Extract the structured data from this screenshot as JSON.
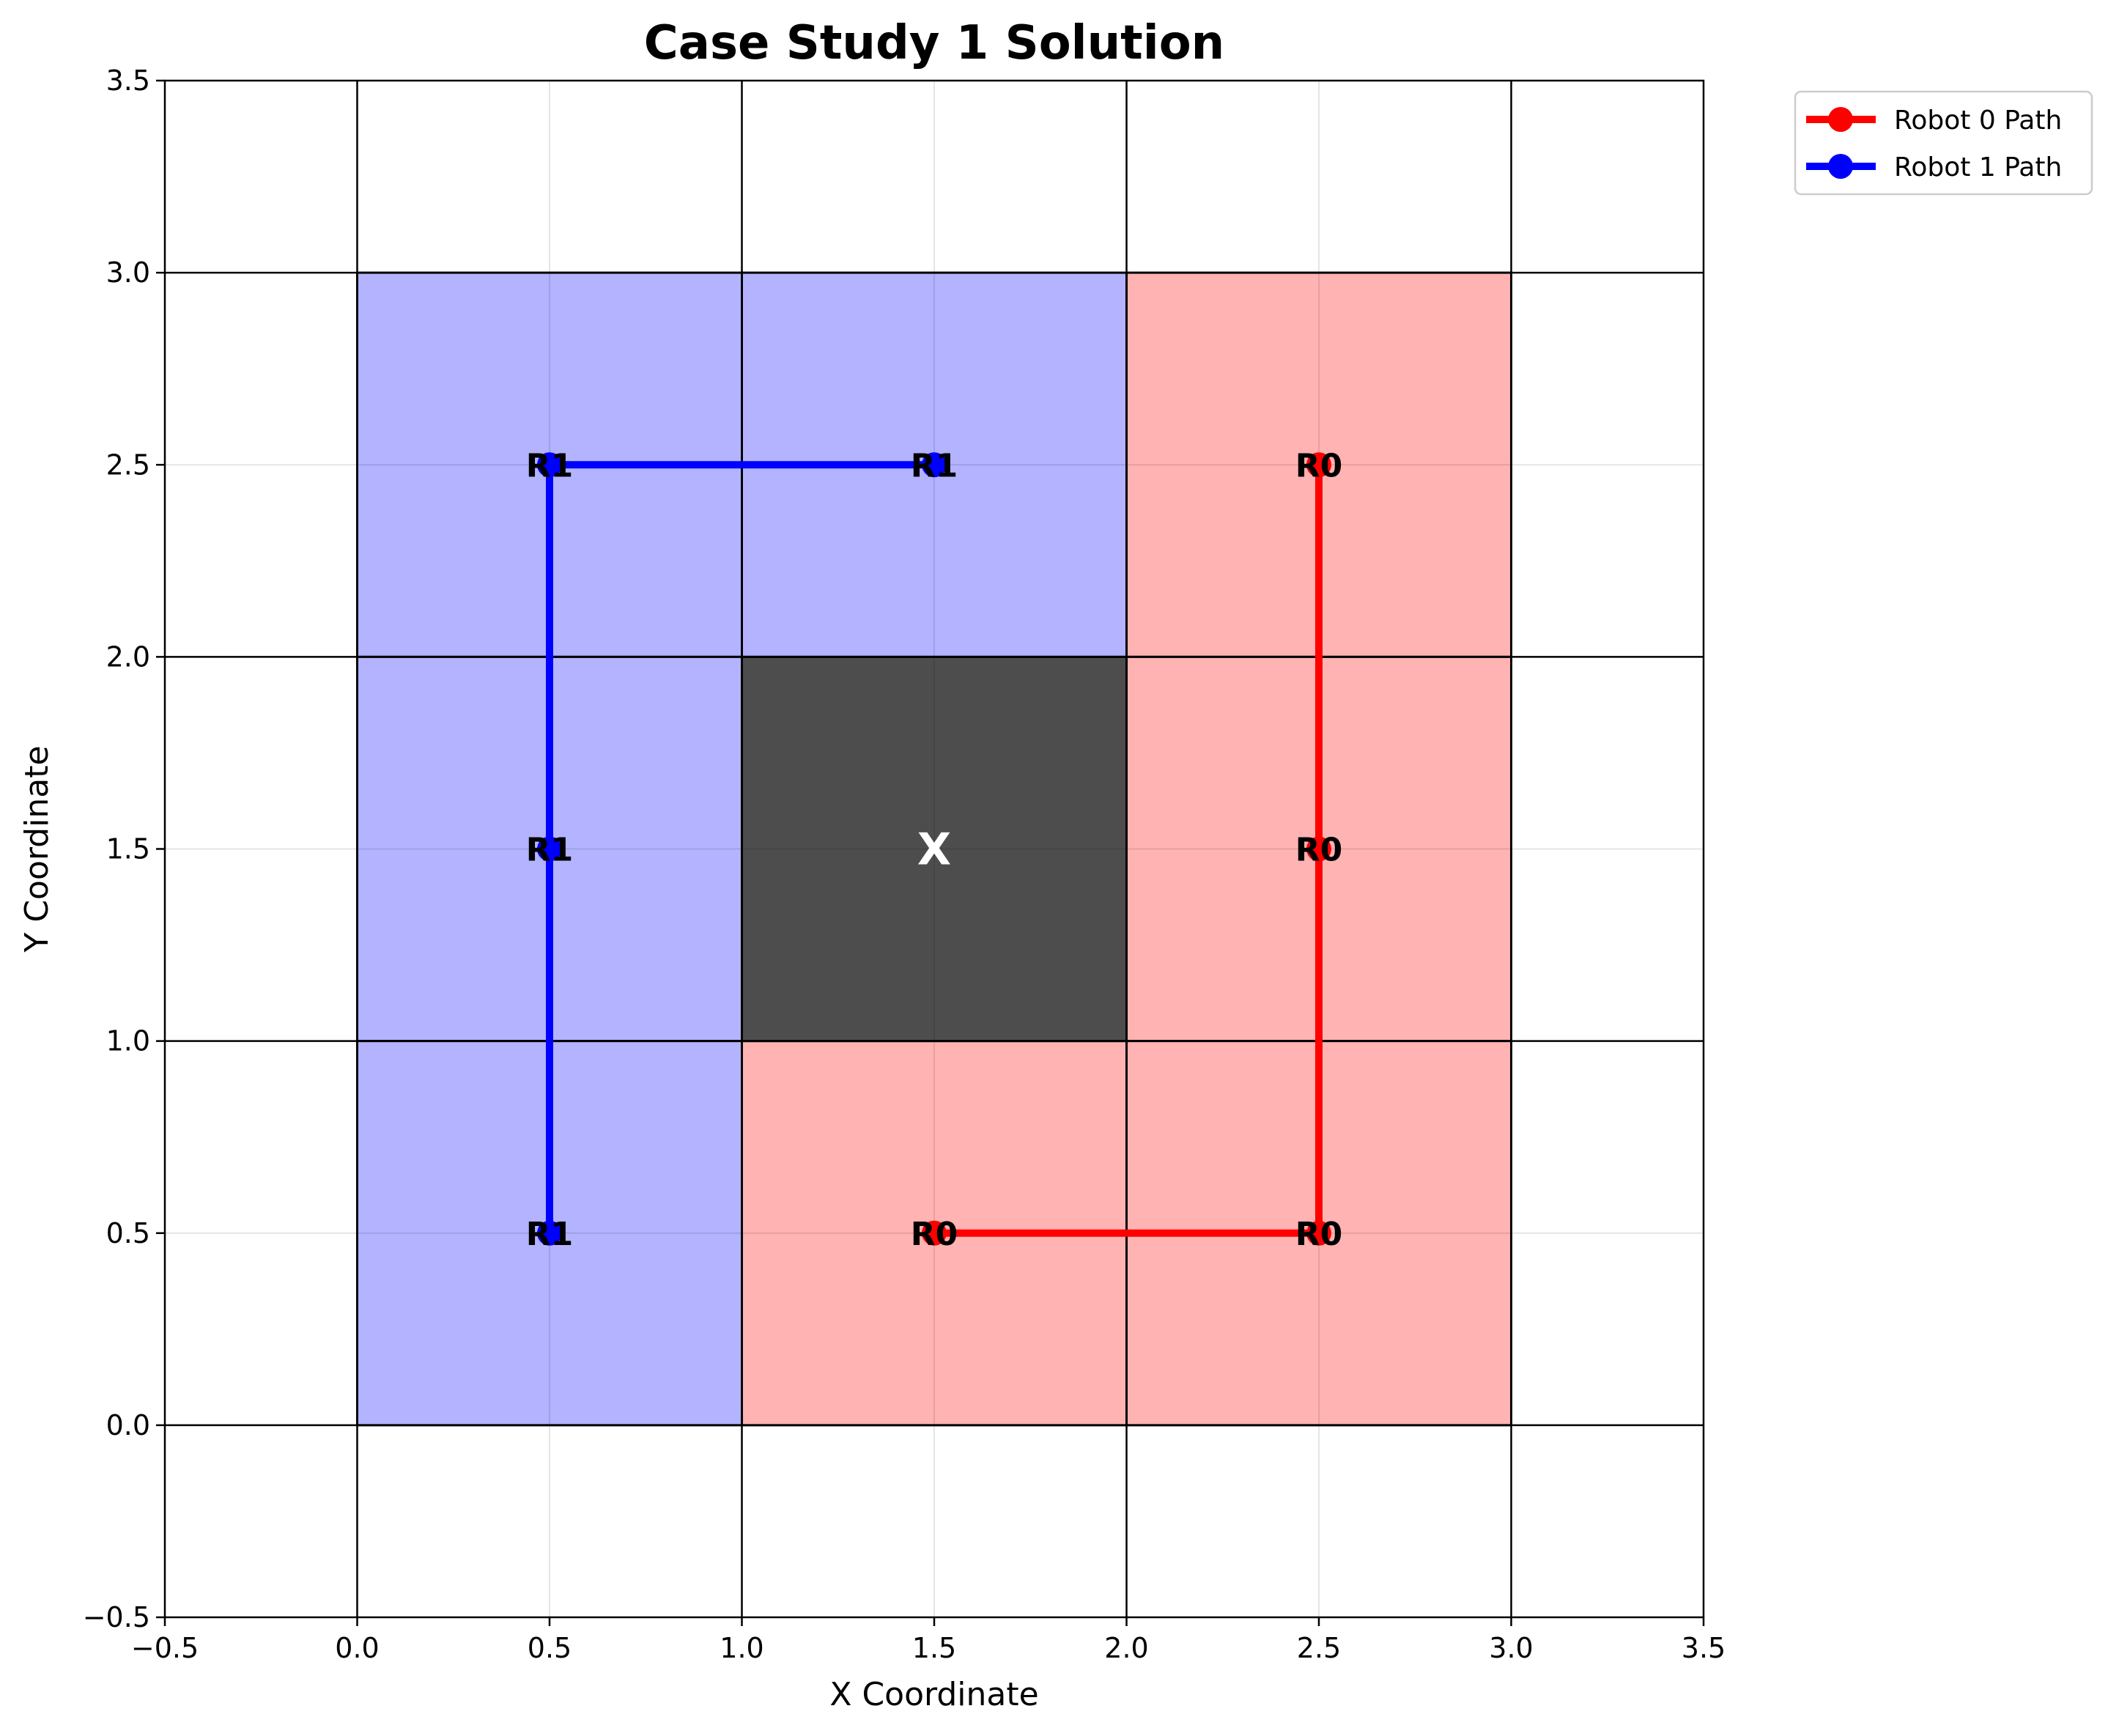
{
  "chart_data": {
    "type": "line",
    "title": "Case Study 1 Solution",
    "xlabel": "X Coordinate",
    "ylabel": "Y Coordinate",
    "xlim": [
      -0.5,
      3.5
    ],
    "ylim": [
      -0.5,
      3.5
    ],
    "xticks": [
      "−0.5",
      "0.0",
      "0.5",
      "1.0",
      "1.5",
      "2.0",
      "2.5",
      "3.0",
      "3.5"
    ],
    "yticks": [
      "−0.5",
      "0.0",
      "0.5",
      "1.0",
      "1.5",
      "2.0",
      "2.5",
      "3.0",
      "3.5"
    ],
    "xtick_values": [
      -0.5,
      0,
      0.5,
      1,
      1.5,
      2,
      2.5,
      3,
      3.5
    ],
    "ytick_values": [
      -0.5,
      0,
      0.5,
      1,
      1.5,
      2,
      2.5,
      3,
      3.5
    ],
    "grid": true,
    "grid_lines": [
      0,
      1,
      2,
      3
    ],
    "legend_placement": "outside top-right",
    "cells": [
      {
        "x": 0,
        "y": 2,
        "owner": "robot1"
      },
      {
        "x": 1,
        "y": 2,
        "owner": "robot1"
      },
      {
        "x": 0,
        "y": 1,
        "owner": "robot1"
      },
      {
        "x": 0,
        "y": 0,
        "owner": "robot1"
      },
      {
        "x": 2,
        "y": 2,
        "owner": "robot0"
      },
      {
        "x": 2,
        "y": 1,
        "owner": "robot0"
      },
      {
        "x": 2,
        "y": 0,
        "owner": "robot0"
      },
      {
        "x": 1,
        "y": 0,
        "owner": "robot0"
      },
      {
        "x": 1,
        "y": 1,
        "owner": "obstacle"
      }
    ],
    "obstacle_label": "X",
    "colors": {
      "robot0": "#ff0000",
      "robot1": "#0000ff",
      "robot0_cell": "#ffb3b3",
      "robot1_cell": "#b3b3ff",
      "obstacle_cell": "#4d4d4d"
    },
    "series": [
      {
        "name": "Robot 0 Path",
        "label": "R0",
        "color": "#ff0000",
        "points": [
          [
            1.5,
            0.5
          ],
          [
            2.5,
            0.5
          ],
          [
            2.5,
            1.5
          ],
          [
            2.5,
            2.5
          ]
        ]
      },
      {
        "name": "Robot 1 Path",
        "label": "R1",
        "color": "#0000ff",
        "points": [
          [
            1.5,
            2.5
          ],
          [
            0.5,
            2.5
          ],
          [
            0.5,
            1.5
          ],
          [
            0.5,
            0.5
          ]
        ]
      }
    ]
  }
}
